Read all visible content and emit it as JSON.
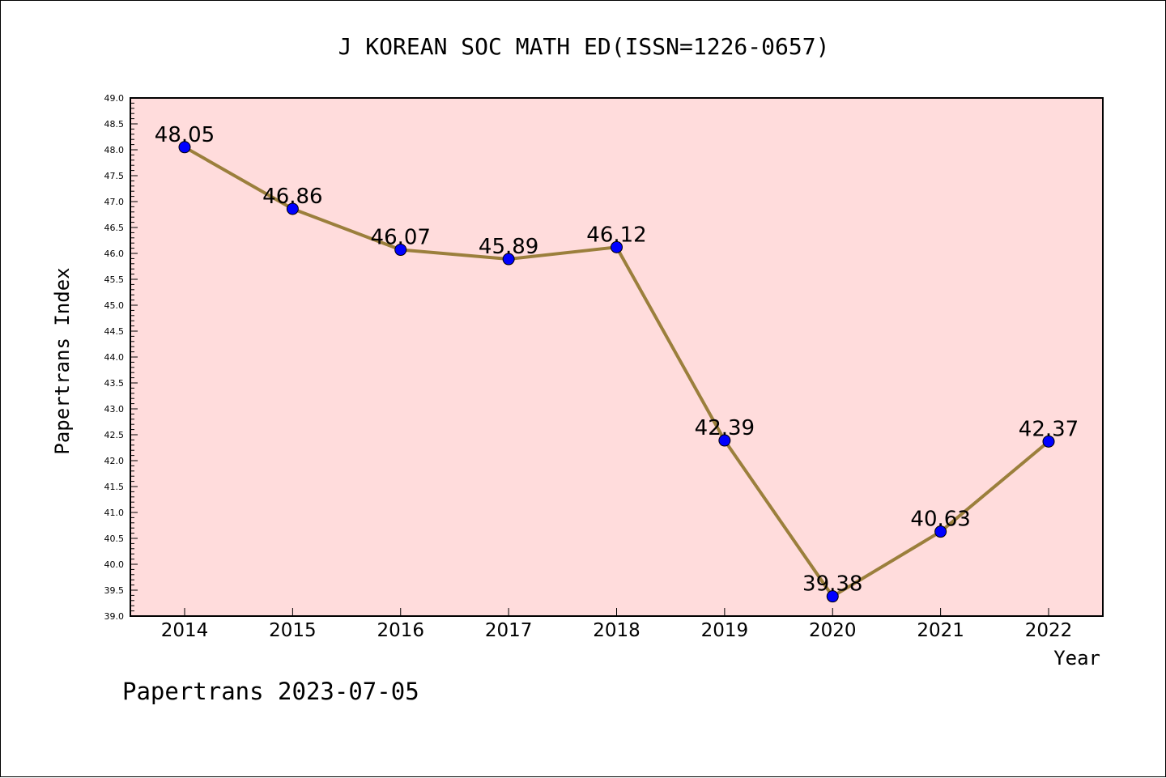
{
  "chart_data": {
    "type": "line",
    "title": "J KOREAN SOC MATH ED(ISSN=1226-0657)",
    "xlabel": "Year",
    "ylabel": "Papertrans Index",
    "categories": [
      "2014",
      "2015",
      "2016",
      "2017",
      "2018",
      "2019",
      "2020",
      "2021",
      "2022"
    ],
    "values": [
      48.05,
      46.86,
      46.07,
      45.89,
      46.12,
      42.39,
      39.38,
      40.63,
      42.37
    ],
    "data_labels": [
      "48.05",
      "46.86",
      "46.07",
      "45.89",
      "46.12",
      "42.39",
      "39.38",
      "40.63",
      "42.37"
    ],
    "ylim": [
      39.0,
      49.0
    ],
    "y_major_step": 0.5,
    "y_tick_labels": [
      "39.0",
      "39.5",
      "40.0",
      "40.5",
      "41.0",
      "41.5",
      "42.0",
      "42.5",
      "43.0",
      "43.5",
      "44.0",
      "44.5",
      "45.0",
      "45.5",
      "46.0",
      "46.5",
      "47.0",
      "47.5",
      "48.0",
      "48.5",
      "49.0"
    ],
    "grid": false,
    "footer": "Papertrans 2023-07-05",
    "colors": {
      "plot_background": "#ffdcdc",
      "line": "#9b7f3c",
      "marker": "#0000ff"
    }
  }
}
